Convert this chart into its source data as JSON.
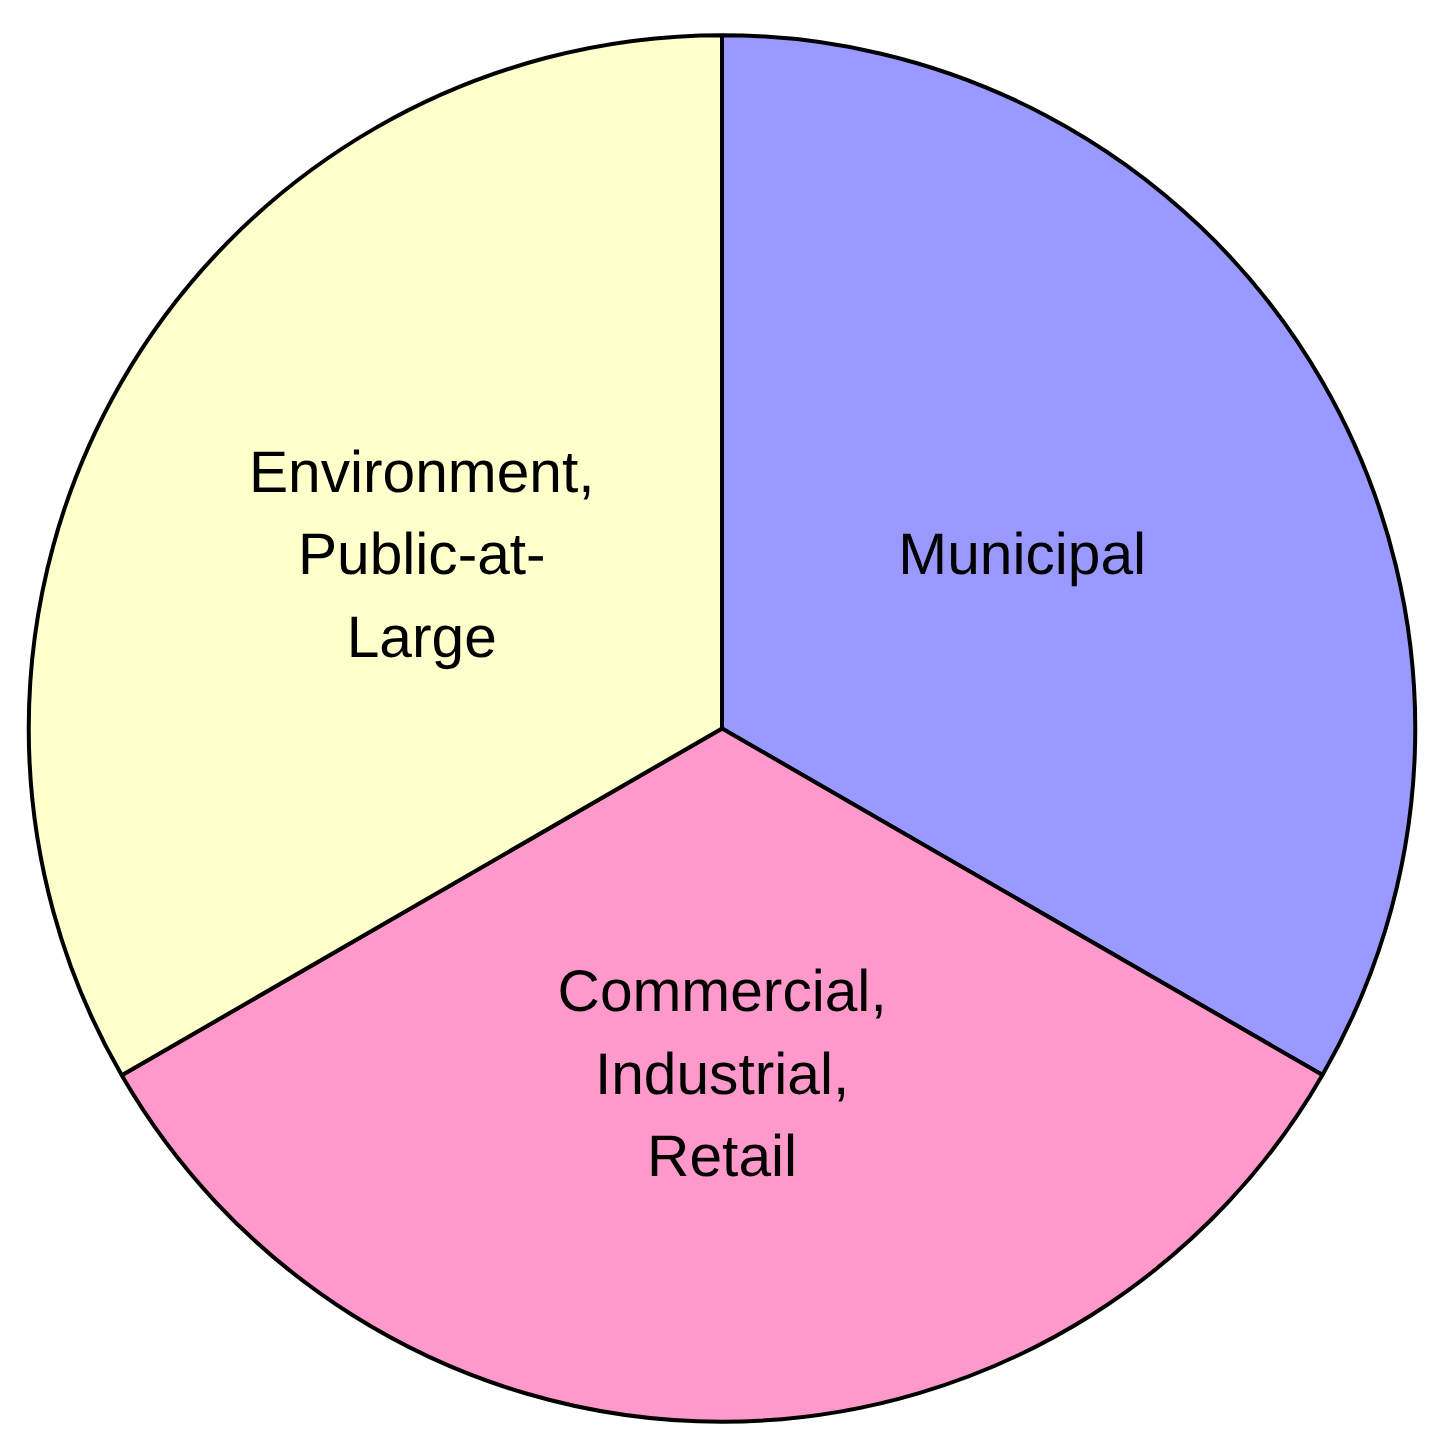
{
  "chart_data": {
    "type": "pie",
    "categories": [
      "Municipal",
      "Commercial,\nIndustrial,\nRetail",
      "Environment,\nPublic-at-\nLarge"
    ],
    "values": [
      33.33,
      33.33,
      33.34
    ],
    "colors": [
      "#9999ff",
      "#ff99cc",
      "#ffffcc"
    ]
  }
}
